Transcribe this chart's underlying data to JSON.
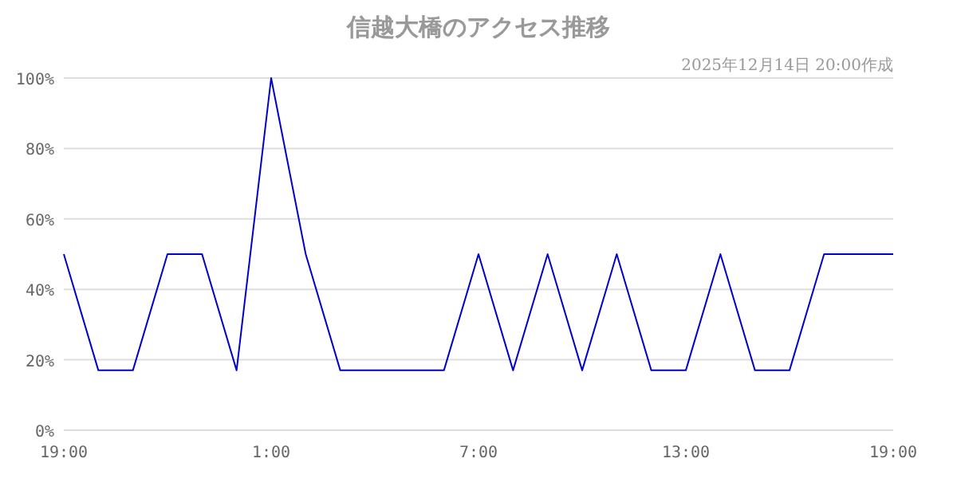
{
  "chart_data": {
    "type": "line",
    "title": "信越大橋のアクセス推移",
    "subtitle": "2025年12月14日 20:00作成",
    "x": [
      "2025-12-13T19:00",
      "2025-12-13T20:00",
      "2025-12-13T21:00",
      "2025-12-13T22:00",
      "2025-12-13T23:00",
      "2025-12-14T00:00",
      "2025-12-14T01:00",
      "2025-12-14T02:00",
      "2025-12-14T03:00",
      "2025-12-14T04:00",
      "2025-12-14T05:00",
      "2025-12-14T06:00",
      "2025-12-14T07:00",
      "2025-12-14T08:00",
      "2025-12-14T09:00",
      "2025-12-14T10:00",
      "2025-12-14T11:00",
      "2025-12-14T12:00",
      "2025-12-14T13:00",
      "2025-12-14T14:00",
      "2025-12-14T15:00",
      "2025-12-14T16:00",
      "2025-12-14T17:00",
      "2025-12-14T18:00",
      "2025-12-14T19:00"
    ],
    "series": [
      {
        "color": "#0000cc",
        "values": [
          50,
          17,
          17,
          50,
          50,
          17,
          100,
          50,
          17,
          17,
          17,
          17,
          50,
          17,
          50,
          17,
          50,
          17,
          17,
          50,
          17,
          17,
          50,
          50,
          50
        ]
      }
    ],
    "xlim": [
      "2025-12-13T19:00",
      "2025-12-14T19:00"
    ],
    "xticks": [
      {
        "value": "2025-12-13T19:00",
        "label": "19:00"
      },
      {
        "value": "2025-12-14T01:00",
        "label": "1:00"
      },
      {
        "value": "2025-12-14T07:00",
        "label": "7:00"
      },
      {
        "value": "2025-12-14T13:00",
        "label": "13:00"
      },
      {
        "value": "2025-12-14T19:00",
        "label": "19:00"
      }
    ],
    "ylim": [
      0,
      100
    ],
    "yticks": [
      {
        "value": 0,
        "label": "0%"
      },
      {
        "value": 20,
        "label": "20%"
      },
      {
        "value": 40,
        "label": "40%"
      },
      {
        "value": 60,
        "label": "60%"
      },
      {
        "value": 80,
        "label": "80%"
      },
      {
        "value": 100,
        "label": "100%"
      }
    ],
    "grid": "y",
    "marker": "none",
    "line_style": "solid"
  }
}
